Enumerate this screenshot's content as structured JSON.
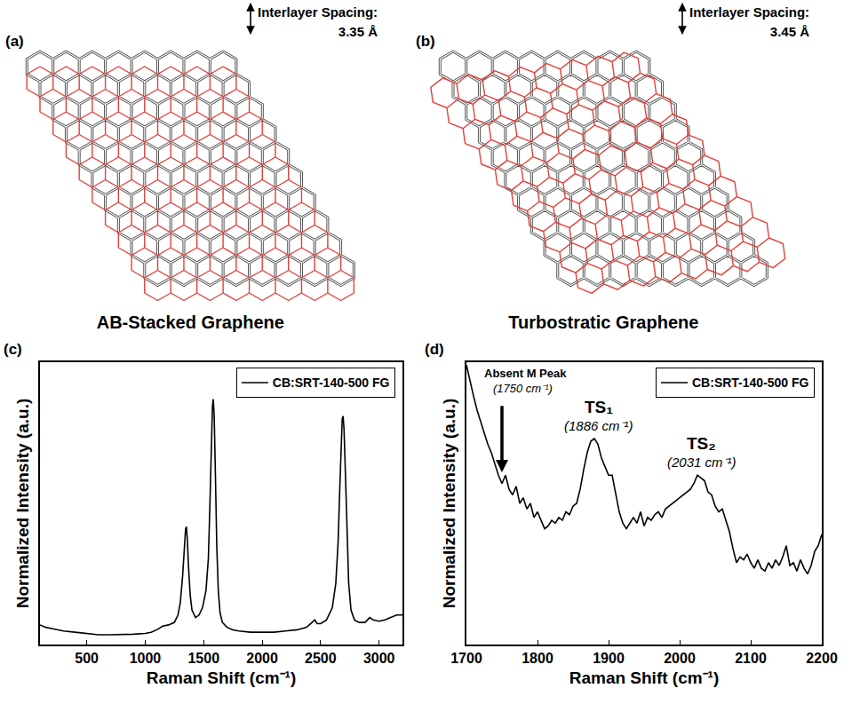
{
  "panels": [
    {
      "label": "(a)",
      "interlayer_spacing_label": "Interlayer Spacing:",
      "interlayer_spacing": "3.35 Å",
      "caption": "AB-Stacked Graphene",
      "stacking": "AB"
    },
    {
      "label": "(b)",
      "interlayer_spacing_label": "Interlayer Spacing:",
      "interlayer_spacing": "3.45 Å",
      "caption": "Turbostratic Graphene",
      "stacking": "turbostratic"
    }
  ],
  "chart_data": [
    {
      "panel": "(c)",
      "type": "line",
      "xlabel": "Raman Shift (cm⁻¹)",
      "ylabel": "Normalized Intensity (a.u.)",
      "xlim": [
        100,
        3200
      ],
      "xticks": [
        500,
        1000,
        1500,
        2000,
        2500,
        3000
      ],
      "ylim": [
        0,
        1.15
      ],
      "yticks": [],
      "tick_labels": "x",
      "grid": false,
      "legend": "top right",
      "x": [
        100,
        150,
        200,
        250,
        300,
        400,
        500,
        600,
        700,
        800,
        900,
        1000,
        1050,
        1100,
        1150,
        1200,
        1250,
        1280,
        1300,
        1320,
        1335,
        1345,
        1352,
        1360,
        1370,
        1385,
        1400,
        1430,
        1460,
        1490,
        1520,
        1540,
        1555,
        1565,
        1575,
        1582,
        1590,
        1600,
        1612,
        1625,
        1640,
        1660,
        1700,
        1750,
        1800,
        1900,
        2000,
        2100,
        2200,
        2300,
        2380,
        2430,
        2450,
        2470,
        2500,
        2550,
        2600,
        2630,
        2650,
        2665,
        2675,
        2685,
        2692,
        2700,
        2712,
        2725,
        2740,
        2760,
        2790,
        2830,
        2880,
        2920,
        2950,
        3000,
        3050,
        3100,
        3150,
        3200
      ],
      "series": [
        {
          "name": "CB:SRT-140-500 FG",
          "color": "#000000",
          "values": [
            0.08,
            0.07,
            0.065,
            0.06,
            0.055,
            0.05,
            0.045,
            0.04,
            0.04,
            0.04,
            0.042,
            0.045,
            0.05,
            0.06,
            0.075,
            0.08,
            0.09,
            0.12,
            0.17,
            0.28,
            0.4,
            0.47,
            0.48,
            0.43,
            0.32,
            0.2,
            0.14,
            0.11,
            0.12,
            0.15,
            0.22,
            0.35,
            0.6,
            0.82,
            0.97,
            1.0,
            0.93,
            0.7,
            0.4,
            0.22,
            0.13,
            0.09,
            0.07,
            0.06,
            0.055,
            0.05,
            0.05,
            0.05,
            0.055,
            0.06,
            0.07,
            0.09,
            0.1,
            0.085,
            0.085,
            0.1,
            0.15,
            0.25,
            0.42,
            0.65,
            0.82,
            0.92,
            0.93,
            0.88,
            0.7,
            0.45,
            0.25,
            0.14,
            0.1,
            0.09,
            0.09,
            0.11,
            0.1,
            0.095,
            0.1,
            0.11,
            0.12,
            0.12
          ]
        }
      ]
    },
    {
      "panel": "(d)",
      "type": "line",
      "xlabel": "Raman Shift (cm⁻¹)",
      "ylabel": "Normalized Intensity (a.u.)",
      "xlim": [
        1700,
        2200
      ],
      "xticks": [
        1700,
        1800,
        1900,
        2000,
        2100,
        2200
      ],
      "ylim": [
        0,
        1
      ],
      "yticks": [],
      "tick_labels": "x",
      "grid": false,
      "legend": "top right",
      "x": [
        1700,
        1705,
        1710,
        1715,
        1720,
        1725,
        1730,
        1735,
        1740,
        1745,
        1750,
        1755,
        1760,
        1765,
        1770,
        1775,
        1780,
        1785,
        1790,
        1795,
        1800,
        1805,
        1810,
        1815,
        1820,
        1825,
        1830,
        1835,
        1840,
        1845,
        1850,
        1855,
        1860,
        1865,
        1870,
        1875,
        1880,
        1885,
        1890,
        1895,
        1900,
        1905,
        1910,
        1915,
        1920,
        1925,
        1930,
        1935,
        1940,
        1945,
        1950,
        1955,
        1960,
        1965,
        1970,
        1975,
        1980,
        1985,
        1990,
        1995,
        2000,
        2005,
        2010,
        2015,
        2020,
        2025,
        2030,
        2035,
        2040,
        2045,
        2050,
        2055,
        2060,
        2065,
        2070,
        2075,
        2080,
        2085,
        2090,
        2095,
        2100,
        2105,
        2110,
        2115,
        2120,
        2125,
        2130,
        2135,
        2140,
        2145,
        2150,
        2155,
        2160,
        2165,
        2170,
        2175,
        2180,
        2185,
        2190,
        2195,
        2200
      ],
      "series": [
        {
          "name": "CB:SRT-140-500 FG",
          "color": "#000000",
          "values": [
            0.99,
            0.93,
            0.88,
            0.83,
            0.79,
            0.75,
            0.71,
            0.68,
            0.64,
            0.6,
            0.57,
            0.6,
            0.55,
            0.53,
            0.56,
            0.5,
            0.52,
            0.48,
            0.5,
            0.45,
            0.47,
            0.44,
            0.41,
            0.42,
            0.44,
            0.43,
            0.45,
            0.44,
            0.47,
            0.46,
            0.49,
            0.5,
            0.55,
            0.62,
            0.68,
            0.72,
            0.73,
            0.71,
            0.66,
            0.63,
            0.6,
            0.6,
            0.54,
            0.47,
            0.43,
            0.41,
            0.43,
            0.45,
            0.43,
            0.47,
            0.42,
            0.45,
            0.44,
            0.46,
            0.47,
            0.45,
            0.48,
            0.49,
            0.5,
            0.51,
            0.52,
            0.53,
            0.54,
            0.55,
            0.57,
            0.6,
            0.59,
            0.58,
            0.54,
            0.53,
            0.49,
            0.47,
            0.48,
            0.44,
            0.4,
            0.34,
            0.29,
            0.31,
            0.3,
            0.32,
            0.29,
            0.27,
            0.3,
            0.27,
            0.26,
            0.29,
            0.27,
            0.3,
            0.28,
            0.31,
            0.35,
            0.28,
            0.29,
            0.26,
            0.3,
            0.27,
            0.25,
            0.28,
            0.33,
            0.35,
            0.39
          ]
        }
      ],
      "annotations": [
        {
          "text": "Absent M Peak",
          "note": "(1750 cm⁻¹)",
          "x": 1750,
          "marker": "arrow"
        },
        {
          "text": "TS₁",
          "note": "(1886 cm⁻¹)",
          "x": 1886
        },
        {
          "text": "TS₂",
          "note": "(2031 cm⁻¹)",
          "x": 2031
        }
      ]
    }
  ]
}
